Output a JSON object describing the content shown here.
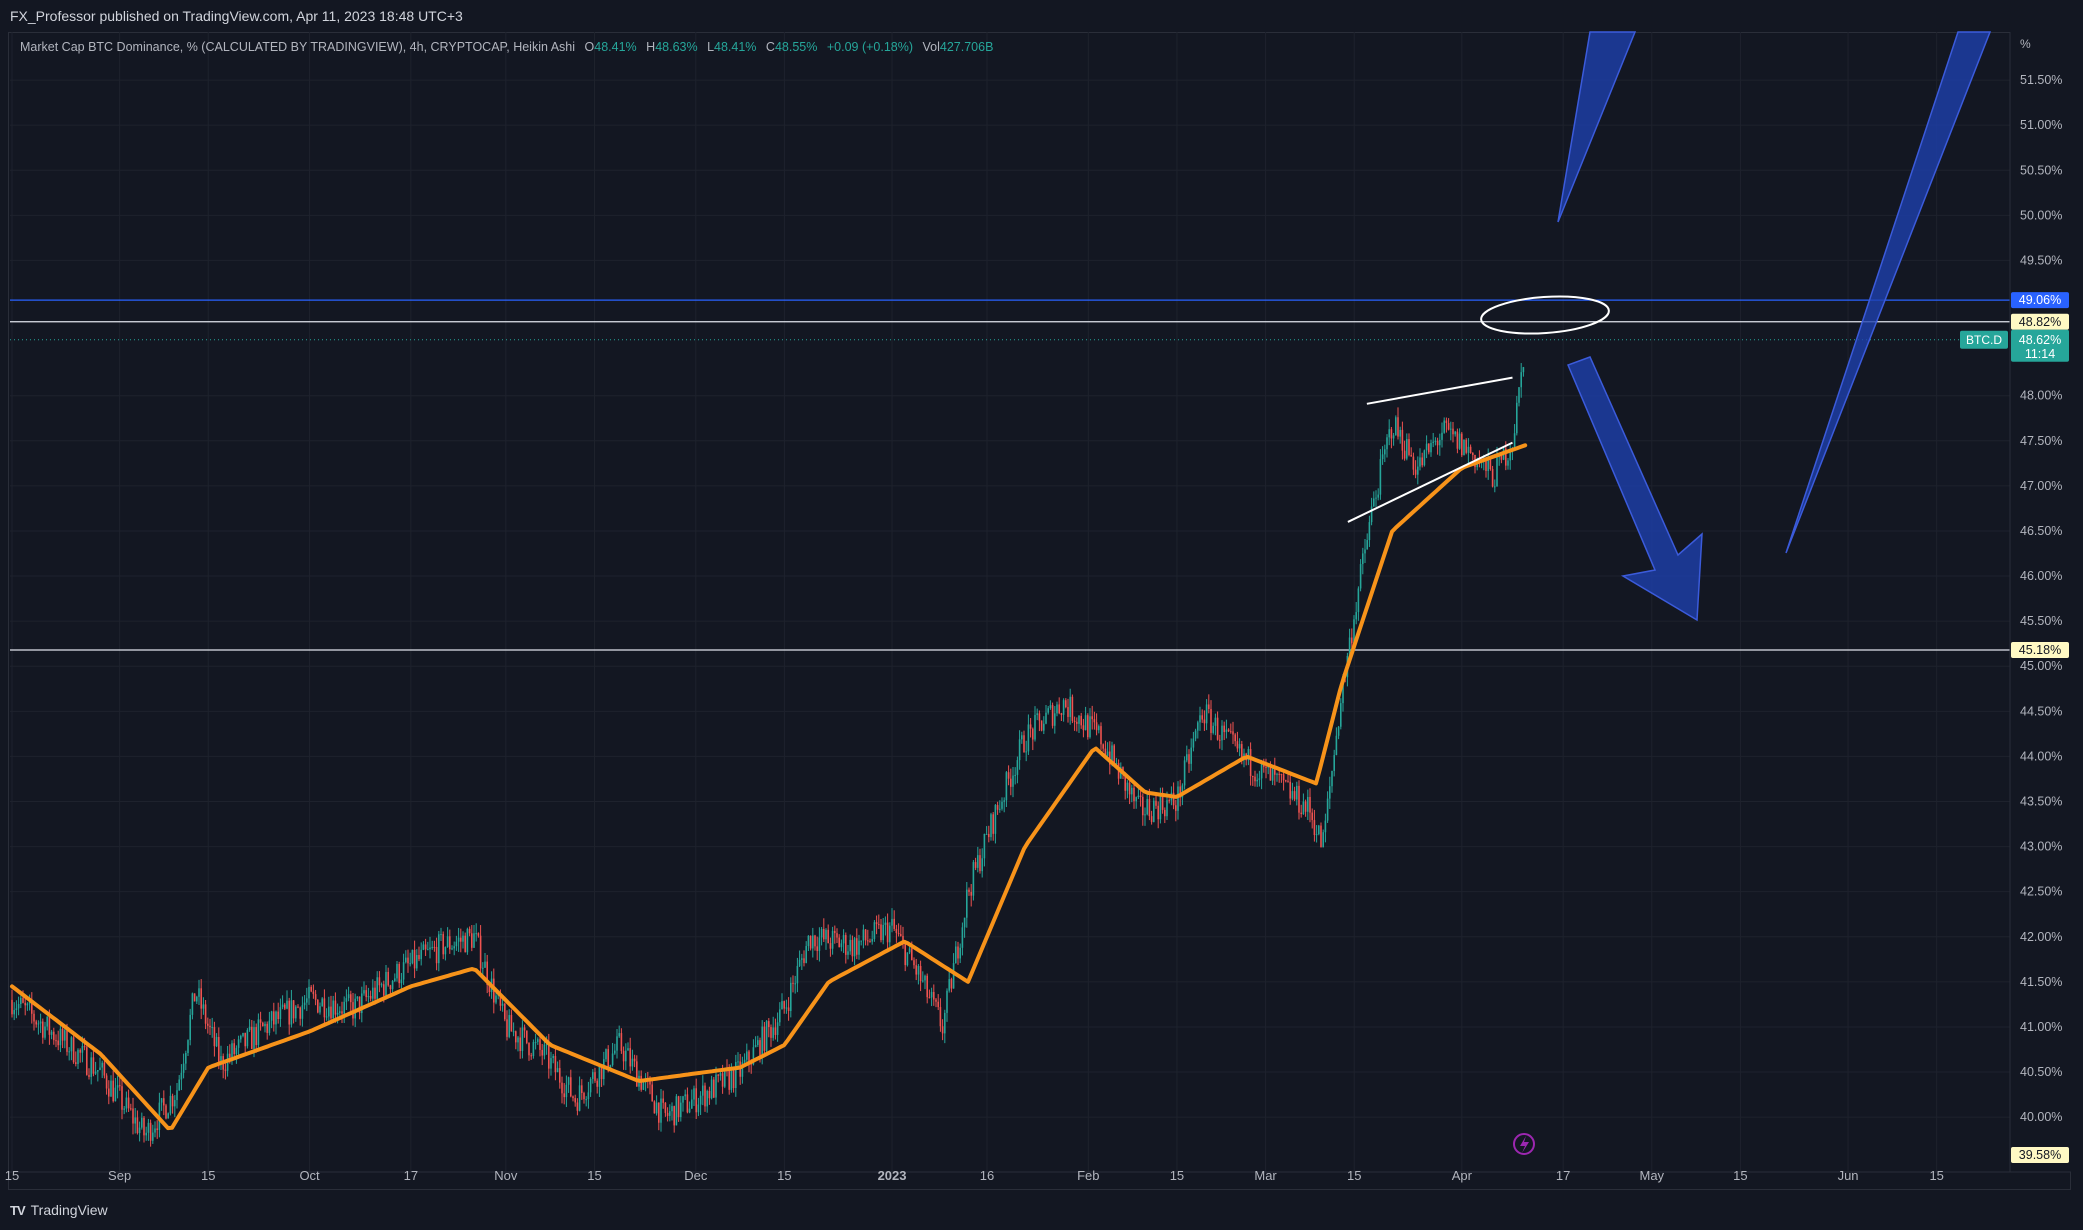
{
  "header": {
    "publisher": "FX_Professor published on TradingView.com, Apr 11, 2023 18:48 UTC+3"
  },
  "legend": {
    "symbol": "Market Cap BTC Dominance, % (CALCULATED BY TRADINGVIEW), 4h, CRYPTOCAP, Heikin Ashi",
    "o_label": "O",
    "o_value": "48.41%",
    "h_label": "H",
    "h_value": "48.63%",
    "l_label": "L",
    "l_value": "48.41%",
    "c_label": "C",
    "c_value": "48.55%",
    "change": "+0.09 (+0.18%)",
    "vol_label": "Vol",
    "vol_value": "427.706B"
  },
  "footer": {
    "brand": "TradingView",
    "logo": "TV"
  },
  "colors": {
    "background": "#131722",
    "grid": "#1e222d",
    "up": "#26a69a",
    "down": "#ef5350",
    "ma": "#f7931a",
    "arrow": "#1e40af",
    "level_blue": "#2962ff",
    "level_white": "#e0e3eb"
  },
  "chart_data": {
    "type": "candlestick",
    "title": "Market Cap BTC Dominance, % (CALCULATED BY TRADINGVIEW)",
    "ylabel": "%",
    "ylim": [
      39.58,
      51.9
    ],
    "y_ticks": [
      "51.50%",
      "51.00%",
      "50.50%",
      "50.00%",
      "49.50%",
      "48.00%",
      "47.50%",
      "47.00%",
      "46.50%",
      "46.00%",
      "45.50%",
      "45.00%",
      "44.50%",
      "44.00%",
      "43.50%",
      "43.00%",
      "42.50%",
      "42.00%",
      "41.50%",
      "41.00%",
      "40.50%",
      "40.00%"
    ],
    "x_ticks": [
      "15",
      "Sep",
      "15",
      "Oct",
      "17",
      "Nov",
      "15",
      "Dec",
      "15",
      "2023",
      "16",
      "Feb",
      "15",
      "Mar",
      "15",
      "Apr",
      "17",
      "May",
      "15",
      "Jun",
      "15"
    ],
    "x_dates": [
      "2022-08-15",
      "2022-09-01",
      "2022-09-15",
      "2022-10-01",
      "2022-10-17",
      "2022-11-01",
      "2022-11-15",
      "2022-12-01",
      "2022-12-15",
      "2023-01-01",
      "2023-01-16",
      "2023-02-01",
      "2023-02-15",
      "2023-03-01",
      "2023-03-15",
      "2023-04-01",
      "2023-04-17",
      "2023-05-01",
      "2023-05-15",
      "2023-06-01",
      "2023-06-15"
    ],
    "price_series": {
      "dates": [
        "2022-08-15",
        "2022-08-22",
        "2022-08-29",
        "2022-09-05",
        "2022-09-10",
        "2022-09-13",
        "2022-09-17",
        "2022-09-24",
        "2022-10-01",
        "2022-10-08",
        "2022-10-15",
        "2022-10-22",
        "2022-10-27",
        "2022-11-01",
        "2022-11-07",
        "2022-11-12",
        "2022-11-19",
        "2022-11-26",
        "2022-12-01",
        "2022-12-08",
        "2022-12-15",
        "2022-12-19",
        "2022-12-26",
        "2023-01-01",
        "2023-01-05",
        "2023-01-09",
        "2023-01-13",
        "2023-01-17",
        "2023-01-22",
        "2023-01-28",
        "2023-02-03",
        "2023-02-09",
        "2023-02-15",
        "2023-02-19",
        "2023-02-25",
        "2023-03-03",
        "2023-03-08",
        "2023-03-10",
        "2023-03-13",
        "2023-03-16",
        "2023-03-18",
        "2023-03-21",
        "2023-03-25",
        "2023-03-29",
        "2023-04-02",
        "2023-04-06",
        "2023-04-09",
        "2023-04-10",
        "2023-04-11"
      ],
      "values": [
        41.3,
        40.9,
        40.5,
        39.8,
        40.3,
        41.4,
        40.6,
        41.0,
        41.3,
        41.2,
        41.6,
        41.9,
        42.0,
        41.0,
        40.7,
        40.2,
        40.8,
        40.0,
        40.2,
        40.5,
        41.2,
        42.0,
        41.9,
        42.1,
        41.6,
        41.0,
        42.5,
        43.3,
        44.2,
        44.6,
        44.2,
        43.4,
        43.5,
        44.5,
        44.0,
        43.7,
        43.4,
        43.0,
        44.7,
        46.0,
        46.8,
        47.7,
        47.2,
        47.6,
        47.4,
        47.1,
        47.5,
        48.0,
        48.62
      ]
    },
    "moving_average": {
      "dates": [
        "2022-08-15",
        "2022-08-29",
        "2022-09-09",
        "2022-09-15",
        "2022-10-01",
        "2022-10-17",
        "2022-10-27",
        "2022-11-08",
        "2022-11-22",
        "2022-12-08",
        "2022-12-15",
        "2022-12-22",
        "2023-01-03",
        "2023-01-13",
        "2023-01-22",
        "2023-02-02",
        "2023-02-10",
        "2023-02-15",
        "2023-02-26",
        "2023-03-09",
        "2023-03-13",
        "2023-03-21",
        "2023-04-01",
        "2023-04-11"
      ],
      "values": [
        41.45,
        40.7,
        39.85,
        40.55,
        40.95,
        41.45,
        41.65,
        40.8,
        40.4,
        40.55,
        40.8,
        41.5,
        41.95,
        41.5,
        43.0,
        44.1,
        43.6,
        43.55,
        44.0,
        43.7,
        44.8,
        46.5,
        47.2,
        47.45
      ]
    },
    "levels": [
      {
        "value": 49.06,
        "label": "49.06%",
        "color": "#2962ff"
      },
      {
        "value": 48.82,
        "label": "48.82%",
        "color": "#e0e3eb"
      },
      {
        "value": 45.18,
        "label": "45.18%",
        "color": "#e0e3eb"
      },
      {
        "value": 39.58,
        "label": "39.58%",
        "color": "#e0e3eb"
      }
    ],
    "current": {
      "symbol": "BTC.D",
      "value": "48.62%",
      "countdown": "11:14"
    },
    "drawings": [
      "rising wedge/channel lines",
      "ellipse at resistance",
      "blue arrow up",
      "blue arrow down",
      "long blue arrow up"
    ]
  }
}
